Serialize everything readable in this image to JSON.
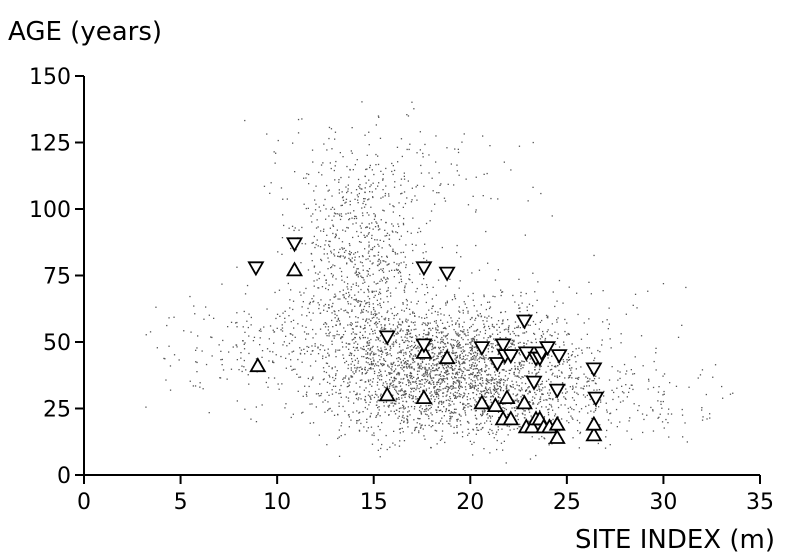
{
  "chart_data": {
    "type": "scatter",
    "ylabel": "AGE (years)",
    "xlabel": "SITE INDEX (m)",
    "xlim": [
      0,
      35
    ],
    "ylim": [
      0,
      150
    ],
    "xticks": [
      0,
      5,
      10,
      15,
      20,
      25,
      30,
      35
    ],
    "yticks": [
      0,
      25,
      50,
      75,
      100,
      125,
      150
    ],
    "grid": false,
    "legend": "none",
    "background_cloud": {
      "marker": "dot",
      "color": "#555555",
      "x_range": [
        3,
        34
      ],
      "y_range": [
        5,
        142
      ],
      "densest_region": {
        "x": [
          14,
          24
        ],
        "y": [
          15,
          60
        ]
      }
    },
    "series": [
      {
        "marker": "triangle-up",
        "points": [
          [
            9.0,
            41
          ],
          [
            10.9,
            77
          ],
          [
            15.7,
            30
          ],
          [
            17.6,
            29
          ],
          [
            17.6,
            46
          ],
          [
            18.8,
            44
          ],
          [
            20.6,
            27
          ],
          [
            21.3,
            26
          ],
          [
            21.7,
            21
          ],
          [
            21.9,
            29
          ],
          [
            22.1,
            21
          ],
          [
            22.8,
            27
          ],
          [
            22.9,
            18
          ],
          [
            23.2,
            18
          ],
          [
            23.4,
            21
          ],
          [
            23.6,
            21
          ],
          [
            23.8,
            18
          ],
          [
            24.1,
            18
          ],
          [
            24.5,
            14
          ],
          [
            24.5,
            19
          ],
          [
            26.4,
            15
          ],
          [
            26.4,
            19
          ]
        ]
      },
      {
        "marker": "triangle-down",
        "points": [
          [
            8.9,
            78
          ],
          [
            10.9,
            87
          ],
          [
            15.7,
            52
          ],
          [
            17.6,
            78
          ],
          [
            17.6,
            49
          ],
          [
            18.8,
            76
          ],
          [
            20.6,
            48
          ],
          [
            21.4,
            42
          ],
          [
            21.7,
            49
          ],
          [
            21.8,
            45
          ],
          [
            22.1,
            45
          ],
          [
            22.8,
            58
          ],
          [
            22.9,
            46
          ],
          [
            23.3,
            35
          ],
          [
            23.4,
            44
          ],
          [
            23.6,
            44
          ],
          [
            23.7,
            46
          ],
          [
            24.0,
            48
          ],
          [
            24.5,
            32
          ],
          [
            24.6,
            45
          ],
          [
            26.4,
            40
          ],
          [
            26.5,
            29
          ]
        ]
      }
    ]
  }
}
